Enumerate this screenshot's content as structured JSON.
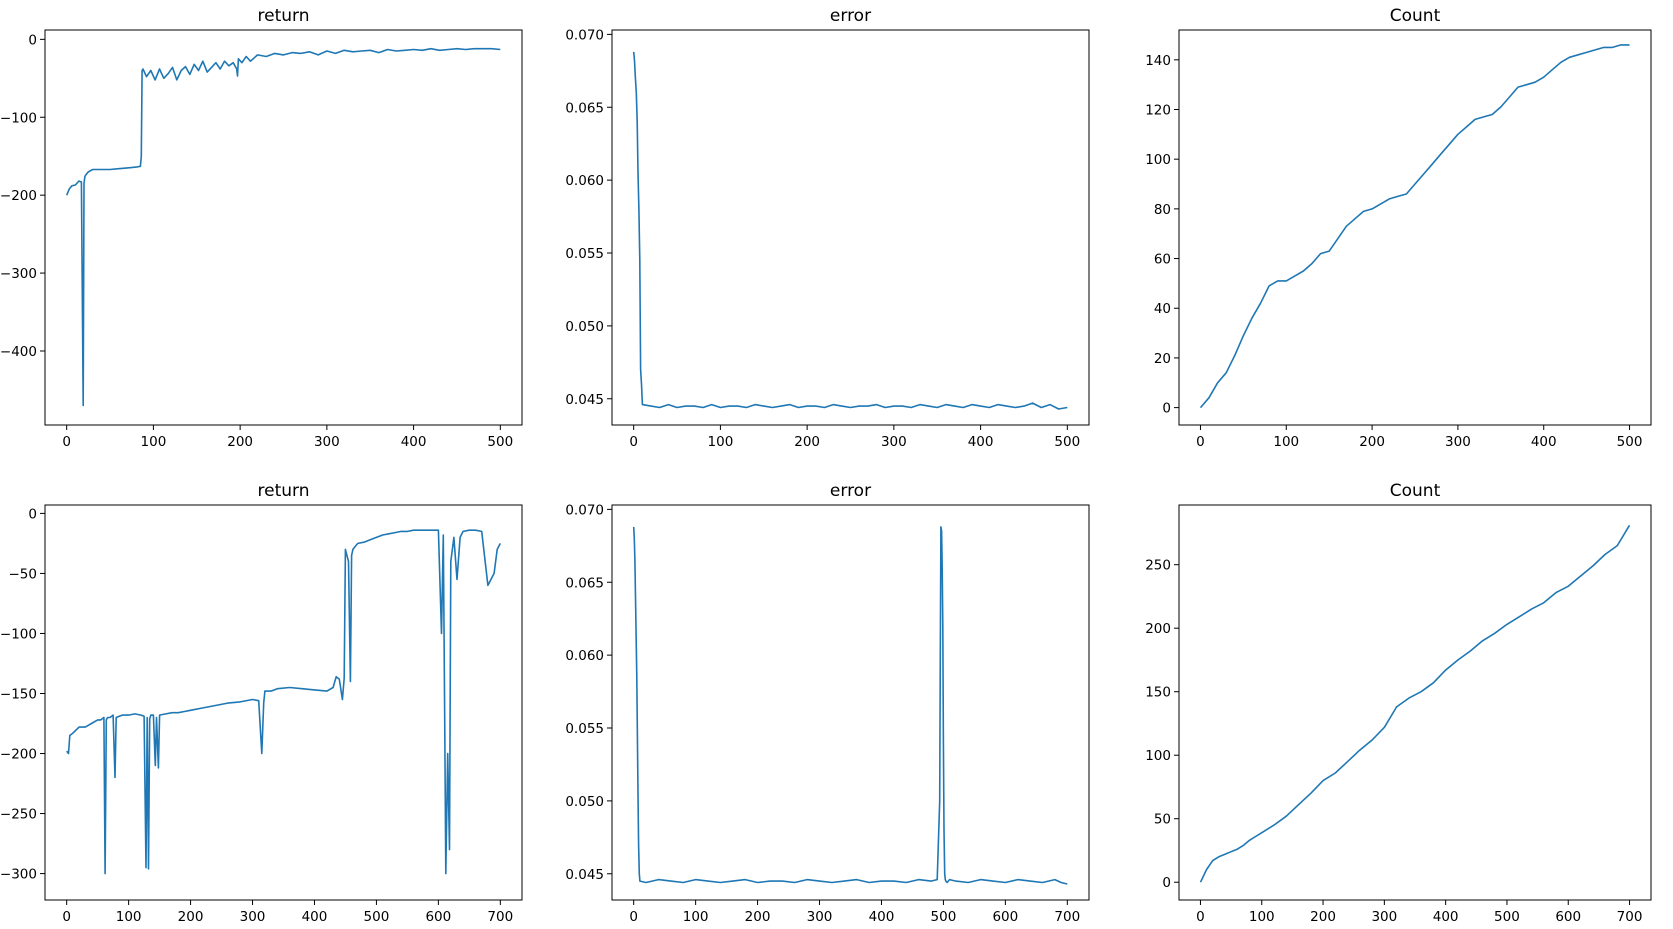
{
  "series_color": "#1f77b4",
  "chart_data": [
    {
      "type": "line",
      "title": "return",
      "xlim": [
        -25,
        525
      ],
      "ylim": [
        -495,
        12
      ],
      "xticks": [
        0,
        100,
        200,
        300,
        400,
        500
      ],
      "yticks": [
        0,
        -100,
        -200,
        -300,
        -400
      ],
      "grid": false,
      "series": [
        {
          "x": [
            0,
            3,
            6,
            10,
            14,
            17,
            19,
            20,
            21,
            22,
            25,
            30,
            40,
            50,
            60,
            70,
            80,
            85,
            86,
            87,
            88,
            92,
            97,
            102,
            107,
            112,
            117,
            122,
            127,
            132,
            137,
            142,
            147,
            152,
            157,
            162,
            167,
            172,
            177,
            182,
            187,
            192,
            196,
            197,
            198,
            202,
            207,
            212,
            220,
            230,
            240,
            250,
            260,
            270,
            280,
            290,
            300,
            310,
            320,
            330,
            340,
            350,
            360,
            370,
            380,
            390,
            400,
            410,
            420,
            430,
            440,
            450,
            460,
            470,
            480,
            490,
            500
          ],
          "y": [
            -200,
            -192,
            -188,
            -187,
            -182,
            -183,
            -470,
            -185,
            -176,
            -174,
            -170,
            -167,
            -167,
            -167,
            -166,
            -165,
            -164,
            -163,
            -150,
            -40,
            -38,
            -48,
            -40,
            -52,
            -38,
            -50,
            -44,
            -36,
            -52,
            -40,
            -35,
            -45,
            -32,
            -40,
            -28,
            -42,
            -36,
            -30,
            -38,
            -28,
            -34,
            -30,
            -38,
            -47,
            -25,
            -30,
            -22,
            -28,
            -20,
            -22,
            -18,
            -20,
            -17,
            -18,
            -16,
            -20,
            -15,
            -18,
            -14,
            -16,
            -15,
            -14,
            -17,
            -13,
            -15,
            -14,
            -13,
            -14,
            -12,
            -14,
            -13,
            -12,
            -13,
            -12,
            -12,
            -12,
            -13
          ]
        }
      ]
    },
    {
      "type": "line",
      "title": "error",
      "xlim": [
        -25,
        525
      ],
      "ylim": [
        0.0432,
        0.0703
      ],
      "xticks": [
        0,
        100,
        200,
        300,
        400,
        500
      ],
      "yticks": [
        0.045,
        0.05,
        0.055,
        0.06,
        0.065,
        0.07
      ],
      "grid": false,
      "series": [
        {
          "x": [
            0,
            1,
            2,
            3,
            4,
            5,
            6,
            7,
            8,
            9,
            10,
            20,
            30,
            40,
            50,
            60,
            70,
            80,
            90,
            100,
            110,
            120,
            130,
            140,
            150,
            160,
            170,
            180,
            190,
            200,
            210,
            220,
            230,
            240,
            250,
            260,
            270,
            280,
            290,
            300,
            310,
            320,
            330,
            340,
            350,
            360,
            370,
            380,
            390,
            400,
            410,
            420,
            430,
            440,
            450,
            460,
            470,
            480,
            490,
            500
          ],
          "y": [
            0.0688,
            0.0682,
            0.067,
            0.066,
            0.064,
            0.0605,
            0.058,
            0.0545,
            0.047,
            0.046,
            0.0446,
            0.0445,
            0.0444,
            0.0446,
            0.0444,
            0.0445,
            0.0445,
            0.0444,
            0.0446,
            0.0444,
            0.0445,
            0.0445,
            0.0444,
            0.0446,
            0.0445,
            0.0444,
            0.0445,
            0.0446,
            0.0444,
            0.0445,
            0.0445,
            0.0444,
            0.0446,
            0.0445,
            0.0444,
            0.0445,
            0.0445,
            0.0446,
            0.0444,
            0.0445,
            0.0445,
            0.0444,
            0.0446,
            0.0445,
            0.0444,
            0.0446,
            0.0445,
            0.0444,
            0.0446,
            0.0445,
            0.0444,
            0.0446,
            0.0445,
            0.0444,
            0.0445,
            0.0447,
            0.0444,
            0.0446,
            0.0443,
            0.0444
          ]
        }
      ]
    },
    {
      "type": "line",
      "title": "Count",
      "xlim": [
        -25,
        525
      ],
      "ylim": [
        -7,
        152
      ],
      "xticks": [
        0,
        100,
        200,
        300,
        400,
        500
      ],
      "yticks": [
        0,
        20,
        40,
        60,
        80,
        100,
        120,
        140
      ],
      "grid": false,
      "series": [
        {
          "x": [
            0,
            10,
            20,
            30,
            40,
            50,
            60,
            70,
            80,
            90,
            100,
            110,
            120,
            130,
            140,
            150,
            160,
            170,
            180,
            190,
            200,
            210,
            220,
            230,
            240,
            250,
            260,
            270,
            280,
            290,
            300,
            310,
            320,
            330,
            340,
            350,
            360,
            370,
            380,
            390,
            400,
            410,
            420,
            430,
            440,
            450,
            460,
            470,
            480,
            490,
            495,
            500
          ],
          "y": [
            0,
            4,
            10,
            14,
            21,
            29,
            36,
            42,
            49,
            51,
            51,
            53,
            55,
            58,
            62,
            63,
            68,
            73,
            76,
            79,
            80,
            82,
            84,
            85,
            86,
            90,
            94,
            98,
            102,
            106,
            110,
            113,
            116,
            117,
            118,
            121,
            125,
            129,
            130,
            131,
            133,
            136,
            139,
            141,
            142,
            143,
            144,
            145,
            145,
            146,
            146,
            146
          ]
        }
      ]
    },
    {
      "type": "line",
      "title": "return",
      "xlim": [
        -35,
        735
      ],
      "ylim": [
        -322,
        7
      ],
      "xticks": [
        0,
        100,
        200,
        300,
        400,
        500,
        600,
        700
      ],
      "yticks": [
        0,
        -50,
        -100,
        -150,
        -200,
        -250,
        -300
      ],
      "grid": false,
      "series": [
        {
          "x": [
            0,
            3,
            5,
            10,
            20,
            30,
            40,
            50,
            55,
            60,
            62,
            64,
            66,
            70,
            75,
            78,
            80,
            85,
            90,
            100,
            110,
            120,
            125,
            128,
            130,
            132,
            134,
            136,
            140,
            143,
            145,
            148,
            150,
            160,
            170,
            180,
            190,
            200,
            220,
            240,
            260,
            280,
            300,
            310,
            315,
            318,
            320,
            330,
            340,
            360,
            380,
            400,
            420,
            430,
            435,
            440,
            445,
            448,
            450,
            455,
            458,
            460,
            462,
            465,
            470,
            480,
            490,
            500,
            510,
            520,
            530,
            540,
            550,
            560,
            570,
            580,
            590,
            600,
            605,
            608,
            610,
            612,
            615,
            618,
            620,
            625,
            630,
            635,
            640,
            650,
            660,
            670,
            680,
            690,
            695,
            700
          ],
          "y": [
            -198,
            -200,
            -185,
            -183,
            -178,
            -178,
            -175,
            -172,
            -172,
            -170,
            -300,
            -172,
            -170,
            -170,
            -168,
            -220,
            -170,
            -169,
            -168,
            -168,
            -167,
            -168,
            -169,
            -295,
            -170,
            -296,
            -171,
            -168,
            -168,
            -210,
            -170,
            -212,
            -168,
            -167,
            -166,
            -166,
            -165,
            -164,
            -162,
            -160,
            -158,
            -157,
            -155,
            -156,
            -200,
            -158,
            -148,
            -148,
            -146,
            -145,
            -146,
            -147,
            -148,
            -145,
            -136,
            -138,
            -155,
            -137,
            -30,
            -40,
            -140,
            -35,
            -30,
            -28,
            -25,
            -24,
            -22,
            -20,
            -18,
            -17,
            -16,
            -15,
            -15,
            -14,
            -14,
            -14,
            -14,
            -14,
            -100,
            -18,
            -160,
            -300,
            -200,
            -280,
            -40,
            -20,
            -55,
            -20,
            -15,
            -14,
            -14,
            -15,
            -60,
            -50,
            -30,
            -25
          ]
        }
      ]
    },
    {
      "type": "line",
      "title": "error",
      "xlim": [
        -35,
        735
      ],
      "ylim": [
        0.0432,
        0.0703
      ],
      "xticks": [
        0,
        100,
        200,
        300,
        400,
        500,
        600,
        700
      ],
      "yticks": [
        0.045,
        0.05,
        0.055,
        0.06,
        0.065,
        0.07
      ],
      "grid": false,
      "series": [
        {
          "x": [
            0,
            1,
            2,
            3,
            4,
            5,
            6,
            7,
            8,
            9,
            10,
            20,
            40,
            60,
            80,
            100,
            120,
            140,
            160,
            180,
            200,
            220,
            240,
            260,
            280,
            300,
            320,
            340,
            360,
            380,
            400,
            420,
            440,
            460,
            480,
            490,
            494,
            495,
            496,
            497,
            498,
            499,
            500,
            501,
            502,
            503,
            504,
            506,
            510,
            520,
            540,
            560,
            580,
            600,
            620,
            640,
            660,
            680,
            690,
            700
          ],
          "y": [
            0.0688,
            0.068,
            0.0665,
            0.064,
            0.061,
            0.0585,
            0.0545,
            0.0505,
            0.047,
            0.045,
            0.0445,
            0.0444,
            0.0446,
            0.0445,
            0.0444,
            0.0446,
            0.0445,
            0.0444,
            0.0445,
            0.0446,
            0.0444,
            0.0445,
            0.0445,
            0.0444,
            0.0446,
            0.0445,
            0.0444,
            0.0445,
            0.0446,
            0.0444,
            0.0445,
            0.0445,
            0.0444,
            0.0446,
            0.0445,
            0.0446,
            0.05,
            0.06,
            0.0688,
            0.0685,
            0.066,
            0.062,
            0.054,
            0.048,
            0.045,
            0.0446,
            0.0445,
            0.0444,
            0.0446,
            0.0445,
            0.0444,
            0.0446,
            0.0445,
            0.0444,
            0.0446,
            0.0445,
            0.0444,
            0.0446,
            0.0444,
            0.0443
          ]
        }
      ]
    },
    {
      "type": "line",
      "title": "Count",
      "xlim": [
        -35,
        735
      ],
      "ylim": [
        -14,
        297
      ],
      "xticks": [
        0,
        100,
        200,
        300,
        400,
        500,
        600,
        700
      ],
      "yticks": [
        0,
        50,
        100,
        150,
        200,
        250
      ],
      "grid": false,
      "series": [
        {
          "x": [
            0,
            10,
            20,
            30,
            40,
            50,
            60,
            70,
            80,
            90,
            100,
            120,
            140,
            160,
            180,
            200,
            220,
            240,
            260,
            280,
            300,
            310,
            320,
            340,
            360,
            380,
            400,
            420,
            440,
            460,
            480,
            500,
            520,
            540,
            560,
            580,
            600,
            620,
            640,
            660,
            680,
            700
          ],
          "y": [
            0,
            10,
            17,
            20,
            22,
            24,
            26,
            29,
            33,
            36,
            39,
            45,
            52,
            61,
            70,
            80,
            86,
            95,
            104,
            112,
            122,
            130,
            138,
            145,
            150,
            157,
            167,
            175,
            182,
            190,
            196,
            203,
            209,
            215,
            220,
            228,
            233,
            241,
            249,
            258,
            265,
            281
          ]
        }
      ]
    }
  ]
}
